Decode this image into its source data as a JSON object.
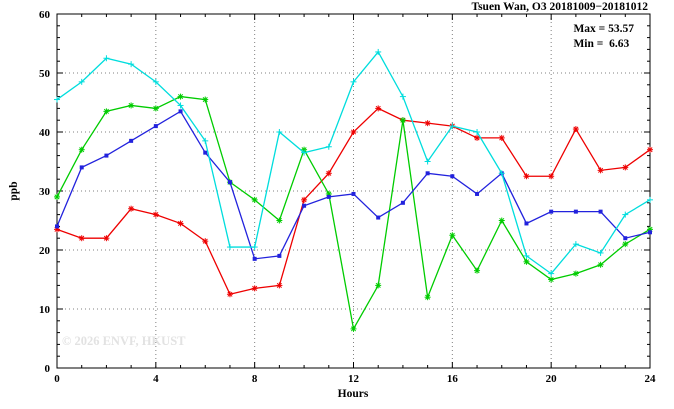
{
  "header": {
    "title": "Tsuen Wan, O3 20181009−20181012"
  },
  "annotations": {
    "max_label": "Max = 53.57",
    "min_label": "Min =  6.63"
  },
  "watermark": "© 2026 ENVF, HKUST",
  "chart_data": {
    "type": "line",
    "title": "Tsuen Wan, O3 20181009−20181012",
    "xlabel": "Hours",
    "ylabel": "ppb",
    "xlim": [
      0,
      24
    ],
    "ylim": [
      0,
      60
    ],
    "xticks": [
      0,
      4,
      8,
      12,
      16,
      20,
      24
    ],
    "yticks": [
      0,
      10,
      20,
      30,
      40,
      50,
      60
    ],
    "grid": true,
    "legend_position": "none",
    "max": 53.57,
    "min": 6.63,
    "x": [
      0,
      1,
      2,
      3,
      4,
      5,
      6,
      7,
      8,
      9,
      10,
      11,
      12,
      13,
      14,
      15,
      16,
      17,
      18,
      19,
      20,
      21,
      22,
      23,
      24
    ],
    "series": [
      {
        "name": "red",
        "color": "#ee0000",
        "marker": "asterisk",
        "values": [
          23.5,
          22,
          22,
          27,
          26,
          24.5,
          21.5,
          12.5,
          13.5,
          14,
          28.5,
          33,
          40,
          44,
          42,
          41.5,
          41,
          39,
          39,
          32.5,
          32.5,
          40.5,
          33.5,
          34,
          37
        ]
      },
      {
        "name": "green",
        "color": "#00cc00",
        "marker": "asterisk",
        "values": [
          29,
          37,
          43.5,
          44.5,
          44,
          46,
          45.5,
          31.5,
          28.5,
          25,
          37,
          29.5,
          6.63,
          14,
          42,
          12,
          22.5,
          16.5,
          25,
          18,
          15,
          16,
          17.5,
          21,
          23.5
        ]
      },
      {
        "name": "blue",
        "color": "#2222dd",
        "marker": "square",
        "values": [
          24,
          34,
          36,
          38.5,
          41,
          43.5,
          36.5,
          31.5,
          18.5,
          19,
          27.5,
          29,
          29.5,
          25.5,
          28,
          33,
          32.5,
          29.5,
          33,
          24.5,
          26.5,
          26.5,
          26.5,
          22,
          23
        ]
      },
      {
        "name": "cyan",
        "color": "#00dddd",
        "marker": "plus",
        "values": [
          45.5,
          48.5,
          52.5,
          51.5,
          48.5,
          44.5,
          38.5,
          20.5,
          20.5,
          40,
          36.5,
          37.5,
          48.5,
          53.57,
          46,
          35,
          41,
          40,
          33,
          19,
          16,
          21,
          19.5,
          26,
          28.5
        ]
      }
    ]
  }
}
